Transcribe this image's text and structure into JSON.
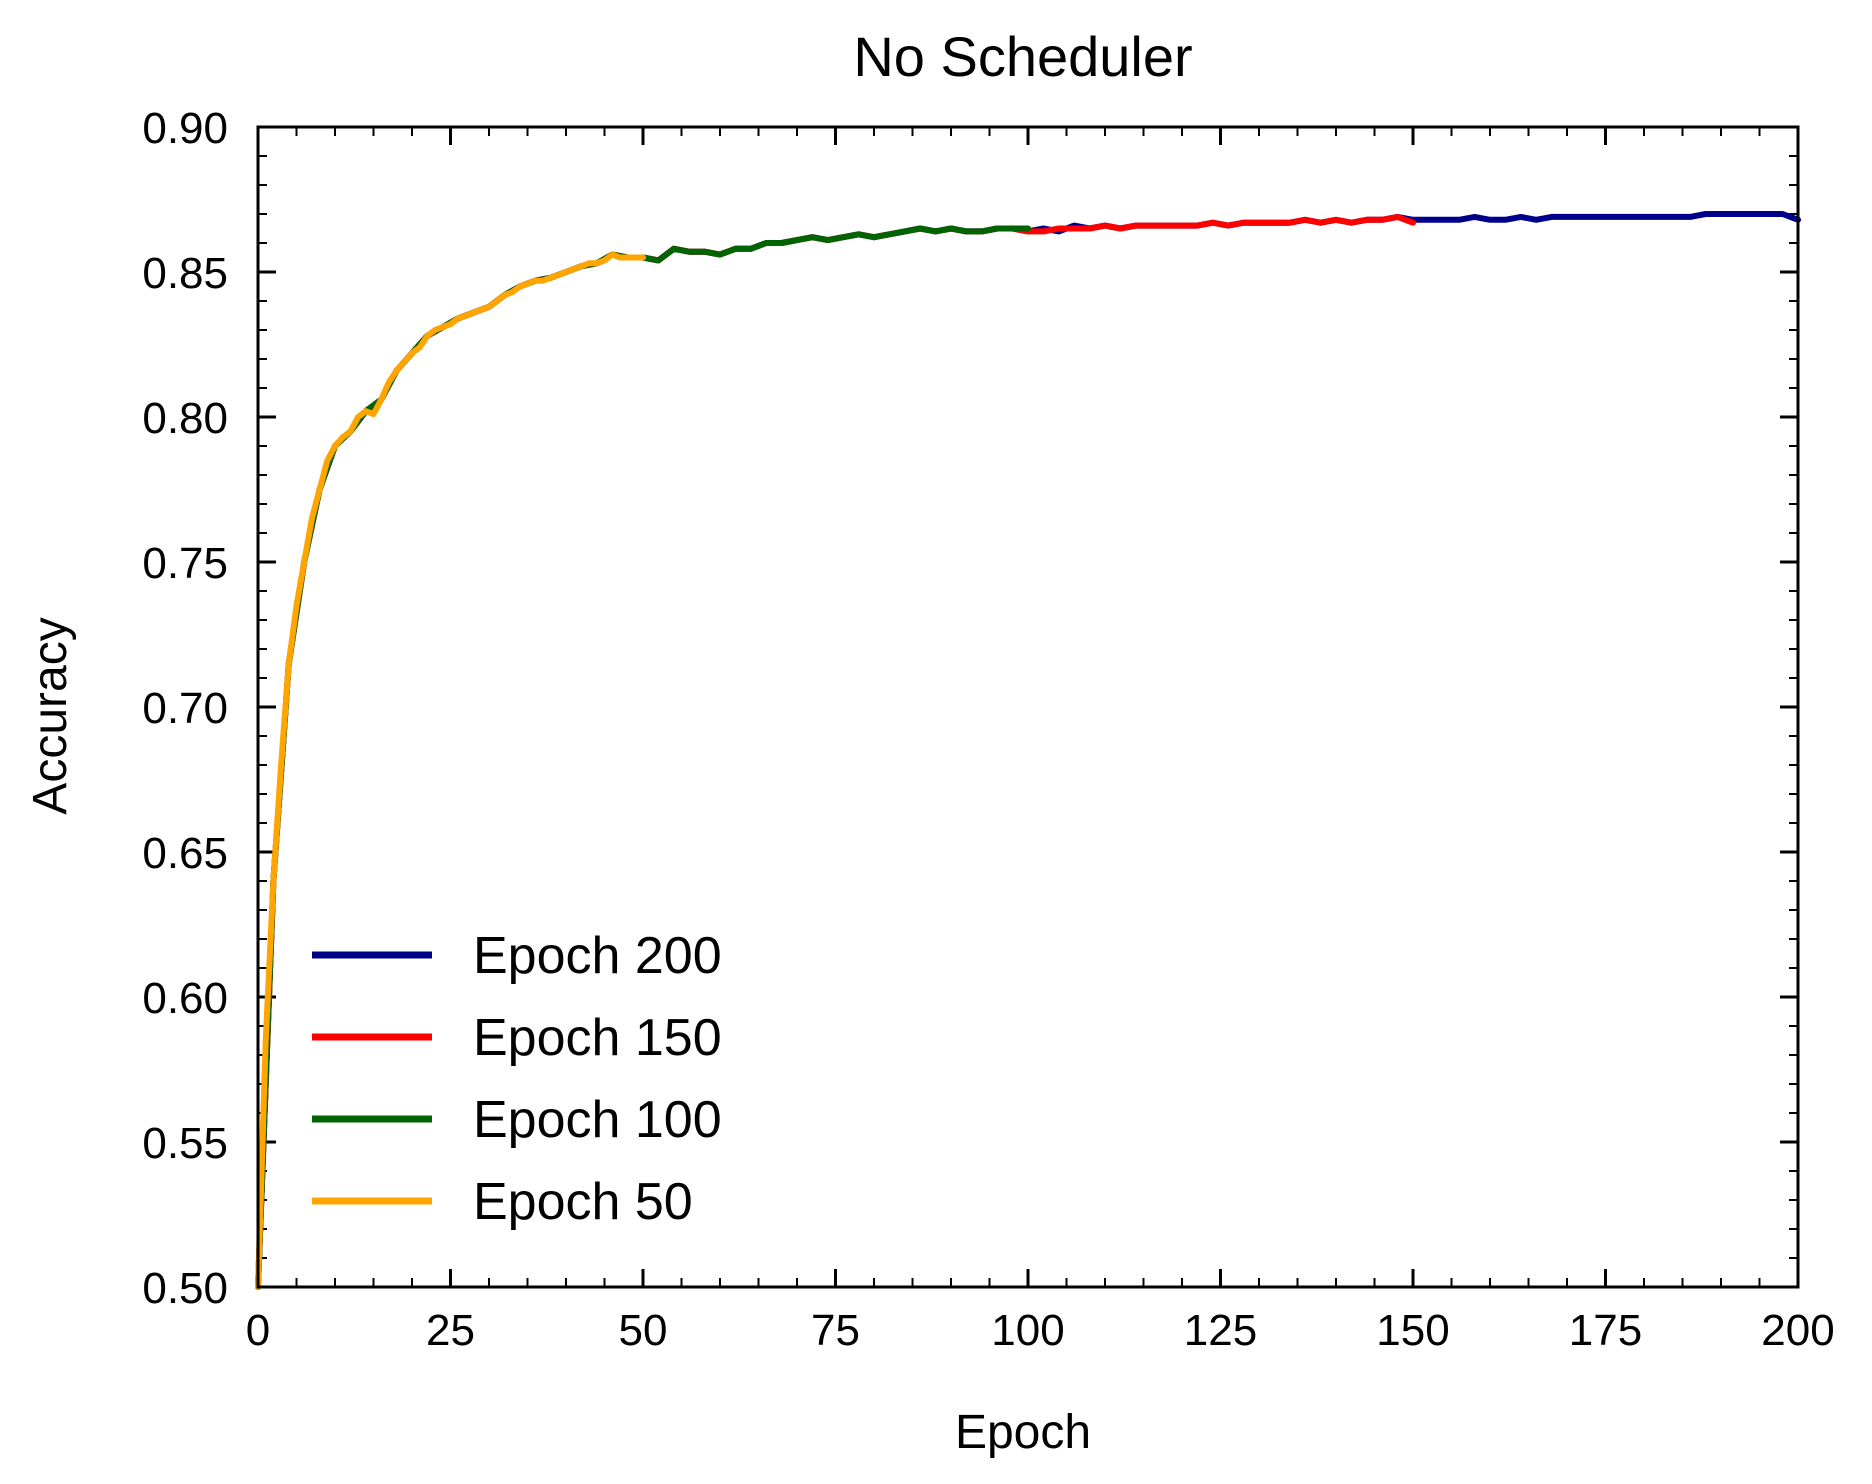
{
  "chart_data": {
    "type": "line",
    "title": "No Scheduler",
    "xlabel": "Epoch",
    "ylabel": "Accuracy",
    "xlim": [
      0,
      200
    ],
    "ylim": [
      0.5,
      0.9
    ],
    "xticks": [
      "0",
      "25",
      "50",
      "75",
      "100",
      "125",
      "150",
      "175",
      "200"
    ],
    "yticks": [
      "0.50",
      "0.55",
      "0.60",
      "0.65",
      "0.70",
      "0.75",
      "0.80",
      "0.85",
      "0.90"
    ],
    "grid": false,
    "legend_position": "lower-left",
    "series": [
      {
        "name": "Epoch 200",
        "color": "#00008b",
        "x": [
          0,
          2,
          4,
          6,
          8,
          10,
          12,
          14,
          16,
          18,
          20,
          22,
          24,
          26,
          28,
          30,
          32,
          34,
          36,
          38,
          40,
          42,
          44,
          46,
          48,
          50,
          52,
          54,
          56,
          58,
          60,
          62,
          64,
          66,
          68,
          70,
          72,
          74,
          76,
          78,
          80,
          82,
          84,
          86,
          88,
          90,
          92,
          94,
          96,
          98,
          100,
          102,
          104,
          106,
          108,
          110,
          112,
          114,
          116,
          118,
          120,
          122,
          124,
          126,
          128,
          130,
          132,
          134,
          136,
          138,
          140,
          142,
          144,
          146,
          148,
          150,
          152,
          154,
          156,
          158,
          160,
          162,
          164,
          166,
          168,
          170,
          172,
          174,
          176,
          178,
          180,
          182,
          184,
          186,
          188,
          190,
          192,
          194,
          196,
          198,
          200
        ],
        "y": [
          0.5,
          0.64,
          0.715,
          0.75,
          0.775,
          0.79,
          0.795,
          0.802,
          0.806,
          0.816,
          0.822,
          0.828,
          0.831,
          0.834,
          0.836,
          0.838,
          0.842,
          0.845,
          0.847,
          0.848,
          0.85,
          0.852,
          0.853,
          0.856,
          0.855,
          0.855,
          0.854,
          0.858,
          0.857,
          0.857,
          0.856,
          0.858,
          0.858,
          0.86,
          0.86,
          0.861,
          0.862,
          0.861,
          0.862,
          0.863,
          0.862,
          0.863,
          0.864,
          0.865,
          0.864,
          0.865,
          0.864,
          0.864,
          0.865,
          0.865,
          0.864,
          0.865,
          0.864,
          0.866,
          0.865,
          0.866,
          0.865,
          0.866,
          0.866,
          0.866,
          0.866,
          0.866,
          0.867,
          0.866,
          0.867,
          0.867,
          0.867,
          0.867,
          0.868,
          0.867,
          0.868,
          0.867,
          0.868,
          0.868,
          0.869,
          0.868,
          0.868,
          0.868,
          0.868,
          0.869,
          0.868,
          0.868,
          0.869,
          0.868,
          0.869,
          0.869,
          0.869,
          0.869,
          0.869,
          0.869,
          0.869,
          0.869,
          0.869,
          0.869,
          0.87,
          0.87,
          0.87,
          0.87,
          0.87,
          0.87,
          0.868
        ]
      },
      {
        "name": "Epoch 150",
        "color": "#ff0000",
        "x": [
          0,
          2,
          4,
          6,
          8,
          10,
          12,
          14,
          16,
          18,
          20,
          22,
          24,
          26,
          28,
          30,
          32,
          34,
          36,
          38,
          40,
          42,
          44,
          46,
          48,
          50,
          52,
          54,
          56,
          58,
          60,
          62,
          64,
          66,
          68,
          70,
          72,
          74,
          76,
          78,
          80,
          82,
          84,
          86,
          88,
          90,
          92,
          94,
          96,
          98,
          100,
          102,
          104,
          106,
          108,
          110,
          112,
          114,
          116,
          118,
          120,
          122,
          124,
          126,
          128,
          130,
          132,
          134,
          136,
          138,
          140,
          142,
          144,
          146,
          148,
          150
        ],
        "y": [
          0.5,
          0.64,
          0.715,
          0.75,
          0.775,
          0.79,
          0.795,
          0.802,
          0.806,
          0.816,
          0.822,
          0.828,
          0.831,
          0.834,
          0.836,
          0.838,
          0.842,
          0.845,
          0.847,
          0.848,
          0.85,
          0.852,
          0.853,
          0.856,
          0.855,
          0.855,
          0.854,
          0.858,
          0.857,
          0.857,
          0.856,
          0.858,
          0.858,
          0.86,
          0.86,
          0.861,
          0.862,
          0.861,
          0.862,
          0.863,
          0.862,
          0.863,
          0.864,
          0.865,
          0.864,
          0.865,
          0.864,
          0.864,
          0.865,
          0.865,
          0.864,
          0.864,
          0.865,
          0.865,
          0.865,
          0.866,
          0.865,
          0.866,
          0.866,
          0.866,
          0.866,
          0.866,
          0.867,
          0.866,
          0.867,
          0.867,
          0.867,
          0.867,
          0.868,
          0.867,
          0.868,
          0.867,
          0.868,
          0.868,
          0.869,
          0.867
        ]
      },
      {
        "name": "Epoch 100",
        "color": "#006400",
        "x": [
          0,
          2,
          4,
          6,
          8,
          10,
          12,
          14,
          16,
          18,
          20,
          22,
          24,
          26,
          28,
          30,
          32,
          34,
          36,
          38,
          40,
          42,
          44,
          46,
          48,
          50,
          52,
          54,
          56,
          58,
          60,
          62,
          64,
          66,
          68,
          70,
          72,
          74,
          76,
          78,
          80,
          82,
          84,
          86,
          88,
          90,
          92,
          94,
          96,
          98,
          100
        ],
        "y": [
          0.5,
          0.64,
          0.715,
          0.75,
          0.775,
          0.79,
          0.795,
          0.802,
          0.806,
          0.816,
          0.822,
          0.828,
          0.831,
          0.834,
          0.836,
          0.838,
          0.842,
          0.845,
          0.847,
          0.848,
          0.85,
          0.852,
          0.853,
          0.856,
          0.855,
          0.855,
          0.854,
          0.858,
          0.857,
          0.857,
          0.856,
          0.858,
          0.858,
          0.86,
          0.86,
          0.861,
          0.862,
          0.861,
          0.862,
          0.863,
          0.862,
          0.863,
          0.864,
          0.865,
          0.864,
          0.865,
          0.864,
          0.864,
          0.865,
          0.865,
          0.865
        ]
      },
      {
        "name": "Epoch 50",
        "color": "#ffa500",
        "x": [
          0,
          1,
          2,
          3,
          4,
          5,
          6,
          7,
          8,
          9,
          10,
          11,
          12,
          13,
          14,
          15,
          16,
          17,
          18,
          19,
          20,
          21,
          22,
          23,
          24,
          25,
          26,
          27,
          28,
          29,
          30,
          31,
          32,
          33,
          34,
          35,
          36,
          37,
          38,
          39,
          40,
          41,
          42,
          43,
          44,
          45,
          46,
          47,
          48,
          49,
          50
        ],
        "y": [
          0.5,
          0.585,
          0.64,
          0.68,
          0.715,
          0.735,
          0.75,
          0.765,
          0.775,
          0.785,
          0.79,
          0.793,
          0.795,
          0.8,
          0.802,
          0.801,
          0.806,
          0.812,
          0.816,
          0.819,
          0.822,
          0.824,
          0.828,
          0.83,
          0.831,
          0.832,
          0.834,
          0.835,
          0.836,
          0.837,
          0.838,
          0.84,
          0.842,
          0.843,
          0.845,
          0.846,
          0.847,
          0.847,
          0.848,
          0.849,
          0.85,
          0.851,
          0.852,
          0.853,
          0.853,
          0.854,
          0.856,
          0.855,
          0.855,
          0.855,
          0.855
        ]
      }
    ]
  }
}
